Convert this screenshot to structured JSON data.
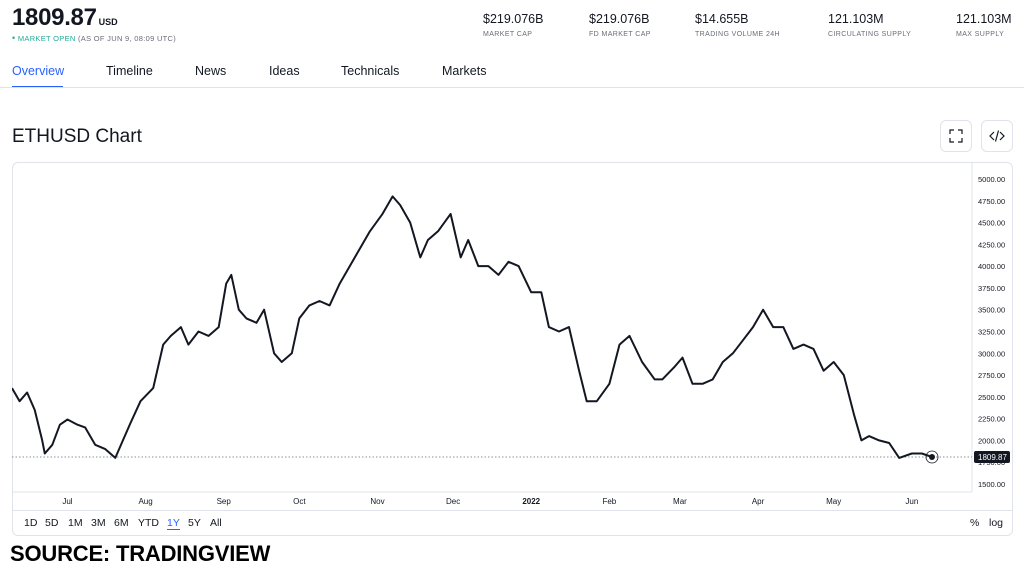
{
  "header": {
    "price": "1809.87",
    "currency": "USD",
    "status_dot": "•",
    "status_open": "MARKET OPEN",
    "status_time": "(AS OF JUN 9, 08:09 UTC)"
  },
  "stats": [
    {
      "value": "$219.076B",
      "label": "MARKET CAP"
    },
    {
      "value": "$219.076B",
      "label": "FD MARKET CAP"
    },
    {
      "value": "$14.655B",
      "label": "TRADING VOLUME 24H"
    },
    {
      "value": "121.103M",
      "label": "CIRCULATING SUPPLY"
    },
    {
      "value": "121.103M",
      "label": "MAX SUPPLY"
    }
  ],
  "tabs": [
    {
      "label": "Overview",
      "active": true
    },
    {
      "label": "Timeline",
      "active": false
    },
    {
      "label": "News",
      "active": false
    },
    {
      "label": "Ideas",
      "active": false
    },
    {
      "label": "Technicals",
      "active": false
    },
    {
      "label": "Markets",
      "active": false
    }
  ],
  "chart_title": "ETHUSD Chart",
  "icons": {
    "fullscreen": "fullscreen-icon",
    "embed": "embed-code-icon"
  },
  "ranges": [
    {
      "label": "1D",
      "active": false
    },
    {
      "label": "5D",
      "active": false
    },
    {
      "label": "1M",
      "active": false
    },
    {
      "label": "3M",
      "active": false
    },
    {
      "label": "6M",
      "active": false
    },
    {
      "label": "YTD",
      "active": false
    },
    {
      "label": "1Y",
      "active": true
    },
    {
      "label": "5Y",
      "active": false
    },
    {
      "label": "All",
      "active": false
    }
  ],
  "scale_options": {
    "percent": "%",
    "log": "log"
  },
  "source": "SOURCE: TRADINGVIEW",
  "colors": {
    "accent": "#2962ff",
    "market_open": "#22ab94",
    "line": "#131722",
    "grid": "#e0e3eb",
    "text_muted": "#6a6d78"
  },
  "chart_data": {
    "type": "line",
    "title": "ETHUSD Chart",
    "x_tick_labels": [
      "Jul",
      "Aug",
      "Sep",
      "Oct",
      "Nov",
      "Dec",
      "2022",
      "Feb",
      "Mar",
      "Apr",
      "May",
      "Jun"
    ],
    "y_tick_labels": [
      "1500.00",
      "1750.00",
      "2000.00",
      "2250.00",
      "2500.00",
      "2750.00",
      "3000.00",
      "3250.00",
      "3500.00",
      "3750.00",
      "4000.00",
      "4250.00",
      "4500.00",
      "4750.00",
      "5000.00"
    ],
    "ylim": [
      1500,
      5000
    ],
    "xlim": [
      "2021-06-09",
      "2022-06-09"
    ],
    "last_price_label": "1809.87",
    "last_price": 1809.87,
    "grid": false,
    "series": [
      {
        "x": [
          "2021-06-09",
          "2021-06-12",
          "2021-06-15",
          "2021-06-18",
          "2021-06-21",
          "2021-06-22",
          "2021-06-25",
          "2021-06-28",
          "2021-07-01",
          "2021-07-05",
          "2021-07-08",
          "2021-07-12",
          "2021-07-16",
          "2021-07-20",
          "2021-07-23",
          "2021-07-26",
          "2021-07-30",
          "2021-08-04",
          "2021-08-08",
          "2021-08-11",
          "2021-08-15",
          "2021-08-18",
          "2021-08-22",
          "2021-08-26",
          "2021-08-30",
          "2021-09-02",
          "2021-09-04",
          "2021-09-07",
          "2021-09-10",
          "2021-09-14",
          "2021-09-17",
          "2021-09-21",
          "2021-09-24",
          "2021-09-28",
          "2021-10-01",
          "2021-10-05",
          "2021-10-09",
          "2021-10-13",
          "2021-10-17",
          "2021-10-21",
          "2021-10-25",
          "2021-10-29",
          "2021-11-03",
          "2021-11-07",
          "2021-11-10",
          "2021-11-14",
          "2021-11-18",
          "2021-11-21",
          "2021-11-25",
          "2021-11-30",
          "2021-12-04",
          "2021-12-07",
          "2021-12-11",
          "2021-12-15",
          "2021-12-19",
          "2021-12-23",
          "2021-12-27",
          "2022-01-01",
          "2022-01-05",
          "2022-01-08",
          "2022-01-12",
          "2022-01-16",
          "2022-01-20",
          "2022-01-23",
          "2022-01-27",
          "2022-02-01",
          "2022-02-05",
          "2022-02-09",
          "2022-02-14",
          "2022-02-19",
          "2022-02-22",
          "2022-02-27",
          "2022-03-02",
          "2022-03-06",
          "2022-03-10",
          "2022-03-14",
          "2022-03-18",
          "2022-03-22",
          "2022-03-26",
          "2022-03-30",
          "2022-04-03",
          "2022-04-07",
          "2022-04-11",
          "2022-04-15",
          "2022-04-19",
          "2022-04-23",
          "2022-04-27",
          "2022-05-01",
          "2022-05-05",
          "2022-05-09",
          "2022-05-12",
          "2022-05-15",
          "2022-05-19",
          "2022-05-23",
          "2022-05-27",
          "2022-06-01",
          "2022-06-05",
          "2022-06-09"
        ],
        "y": [
          2600,
          2450,
          2550,
          2350,
          2000,
          1850,
          1950,
          2180,
          2240,
          2180,
          2150,
          1950,
          1900,
          1800,
          2000,
          2200,
          2450,
          2600,
          3100,
          3200,
          3300,
          3100,
          3250,
          3200,
          3300,
          3800,
          3900,
          3500,
          3400,
          3350,
          3500,
          3000,
          2900,
          3000,
          3400,
          3550,
          3600,
          3550,
          3800,
          4000,
          4200,
          4400,
          4600,
          4800,
          4700,
          4500,
          4100,
          4300,
          4400,
          4600,
          4100,
          4300,
          4000,
          4000,
          3900,
          4050,
          4000,
          3700,
          3700,
          3300,
          3250,
          3300,
          2800,
          2450,
          2450,
          2650,
          3100,
          3200,
          2900,
          2700,
          2700,
          2850,
          2950,
          2650,
          2650,
          2700,
          2900,
          3000,
          3150,
          3300,
          3500,
          3300,
          3300,
          3050,
          3100,
          3050,
          2800,
          2900,
          2750,
          2300,
          2000,
          2050,
          2000,
          1970,
          1800,
          1850,
          1850,
          1809.87
        ]
      }
    ]
  }
}
